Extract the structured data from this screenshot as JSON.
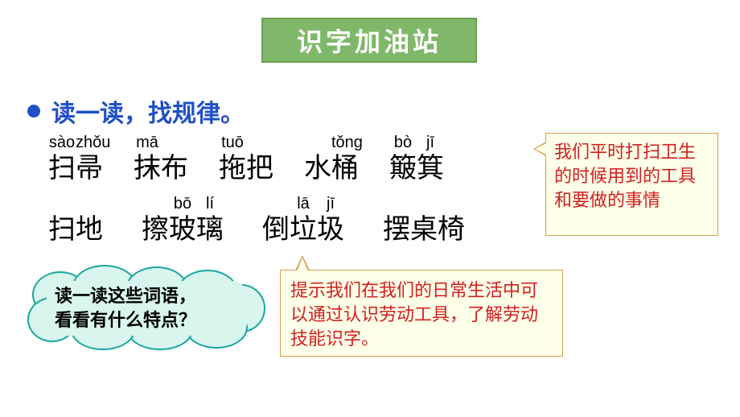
{
  "title": "识字加油站",
  "subtitle": "读一读，找规律。",
  "colors": {
    "title_bg": "#7fb869",
    "title_border": "#6aa050",
    "title_text": "#ffffff",
    "subtitle_text": "#2050c8",
    "bullet": "#2050c8",
    "callout_bg": "#feffe8",
    "callout_border": "#d4a050",
    "callout_text": "#d02020",
    "cloud_bg": "#d8f5ee",
    "cloud_border": "#1aa89e",
    "hanzi": "#000000",
    "pinyin": "#000000",
    "page_bg": "#ffffff"
  },
  "typography": {
    "title_fontsize": 32,
    "subtitle_fontsize": 30,
    "hanzi_fontsize": 34,
    "pinyin_fontsize": 20,
    "callout_fontsize": 22,
    "cloud_fontsize": 22
  },
  "row1": [
    {
      "chars": [
        "扫",
        "帚"
      ],
      "pinyin": [
        "sào",
        "zhǒu"
      ]
    },
    {
      "chars": [
        "抹",
        "布"
      ],
      "pinyin": [
        "mā",
        ""
      ]
    },
    {
      "chars": [
        "拖",
        "把"
      ],
      "pinyin": [
        "tuō",
        ""
      ]
    },
    {
      "chars": [
        "水",
        "桶"
      ],
      "pinyin": [
        "",
        "tǒng"
      ]
    },
    {
      "chars": [
        "簸",
        "箕"
      ],
      "pinyin": [
        "bò",
        "jī"
      ]
    }
  ],
  "row2": [
    {
      "chars": [
        "扫",
        "地"
      ],
      "pinyin": [
        "",
        ""
      ]
    },
    {
      "chars": [
        "擦",
        "玻",
        "璃"
      ],
      "pinyin": [
        "",
        "bō",
        "lí"
      ]
    },
    {
      "chars": [
        "倒",
        "垃",
        "圾"
      ],
      "pinyin": [
        "",
        "lā",
        "jī"
      ]
    },
    {
      "chars": [
        "摆",
        "桌",
        "椅"
      ],
      "pinyin": [
        "",
        "",
        ""
      ]
    }
  ],
  "right_callout": "我们平时打扫卫生的时候用到的工具和要做的事情",
  "cloud_text_l1": "读一读这些词语，",
  "cloud_text_l2": "看看有什么特点？",
  "bottom_callout": "提示我们在我们的日常生活中可以通过认识劳动工具，了解劳动技能识字。"
}
